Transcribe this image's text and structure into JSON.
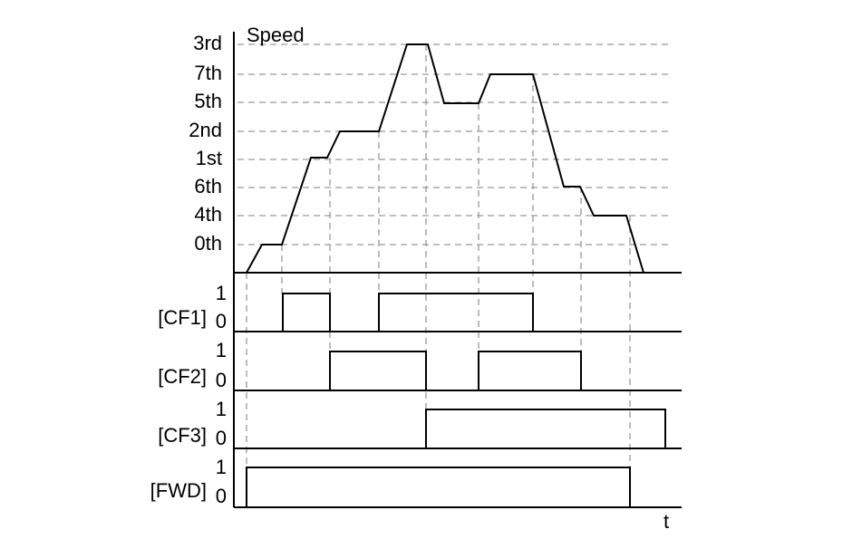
{
  "speed_axis": {
    "title": "Speed",
    "levels": [
      "3rd",
      "7th",
      "5th",
      "2nd",
      "1st",
      "6th",
      "4th",
      "0th"
    ]
  },
  "signals": [
    {
      "label": "[CF1]",
      "high": "1",
      "low": "0"
    },
    {
      "label": "[CF2]",
      "high": "1",
      "low": "0"
    },
    {
      "label": "[CF3]",
      "high": "1",
      "low": "0"
    },
    {
      "label": "[FWD]",
      "high": "1",
      "low": "0"
    }
  ],
  "time_label": "t"
}
